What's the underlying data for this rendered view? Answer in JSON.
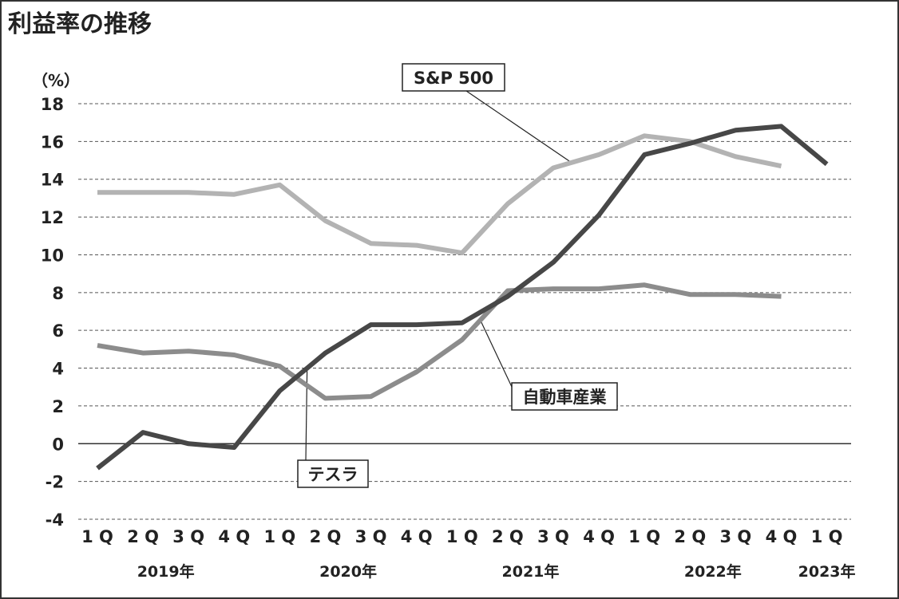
{
  "chart_data": {
    "type": "line",
    "title": "利益率の推移",
    "unit_label": "（%）",
    "ylim": [
      -4,
      18
    ],
    "yticks": [
      18,
      16,
      14,
      12,
      10,
      8,
      6,
      4,
      2,
      0,
      -2,
      -4
    ],
    "categories": [
      "1Q",
      "2Q",
      "3Q",
      "4Q",
      "1Q",
      "2Q",
      "3Q",
      "4Q",
      "1Q",
      "2Q",
      "3Q",
      "4Q",
      "1Q",
      "2Q",
      "3Q",
      "4Q",
      "1Q"
    ],
    "tick_labels": [
      "1 Q",
      "2 Q",
      "3 Q",
      "4 Q",
      "1 Q",
      "2 Q",
      "3 Q",
      "4 Q",
      "1 Q",
      "2 Q",
      "3 Q",
      "4 Q",
      "1 Q",
      "2 Q",
      "3 Q",
      "4 Q",
      "1 Q"
    ],
    "years": [
      {
        "label": "2019年",
        "center_index": 1.5
      },
      {
        "label": "2020年",
        "center_index": 5.5
      },
      {
        "label": "2021年",
        "center_index": 9.5
      },
      {
        "label": "2022年",
        "center_index": 13.5
      },
      {
        "label": "2023年",
        "center_index": 16
      }
    ],
    "grid": "horizontal-dashed",
    "series": [
      {
        "name": "S&P 500",
        "color": "#b3b3b3",
        "values": [
          13.3,
          13.3,
          13.3,
          13.2,
          13.7,
          11.8,
          10.6,
          10.5,
          10.1,
          12.7,
          14.6,
          15.3,
          16.3,
          16.0,
          15.2,
          14.7,
          null
        ]
      },
      {
        "name": "自動車産業",
        "color": "#8c8c8c",
        "values": [
          5.2,
          4.8,
          4.9,
          4.7,
          4.1,
          2.4,
          2.5,
          3.8,
          5.5,
          8.1,
          8.2,
          8.2,
          8.4,
          7.9,
          7.9,
          7.8,
          null
        ]
      },
      {
        "name": "テスラ",
        "color": "#474747",
        "values": [
          -1.3,
          0.6,
          0.0,
          -0.2,
          2.8,
          4.8,
          6.3,
          6.3,
          6.4,
          7.8,
          9.6,
          12.1,
          15.3,
          15.9,
          16.6,
          16.8,
          14.8
        ]
      }
    ]
  },
  "callouts": [
    {
      "series_index": 0,
      "label": "S&P 500",
      "point_index": 10.4
    },
    {
      "series_index": 1,
      "label": "自動車産業",
      "point_index": 8.4
    },
    {
      "series_index": 2,
      "label": "テスラ",
      "point_index": 4.6
    }
  ]
}
